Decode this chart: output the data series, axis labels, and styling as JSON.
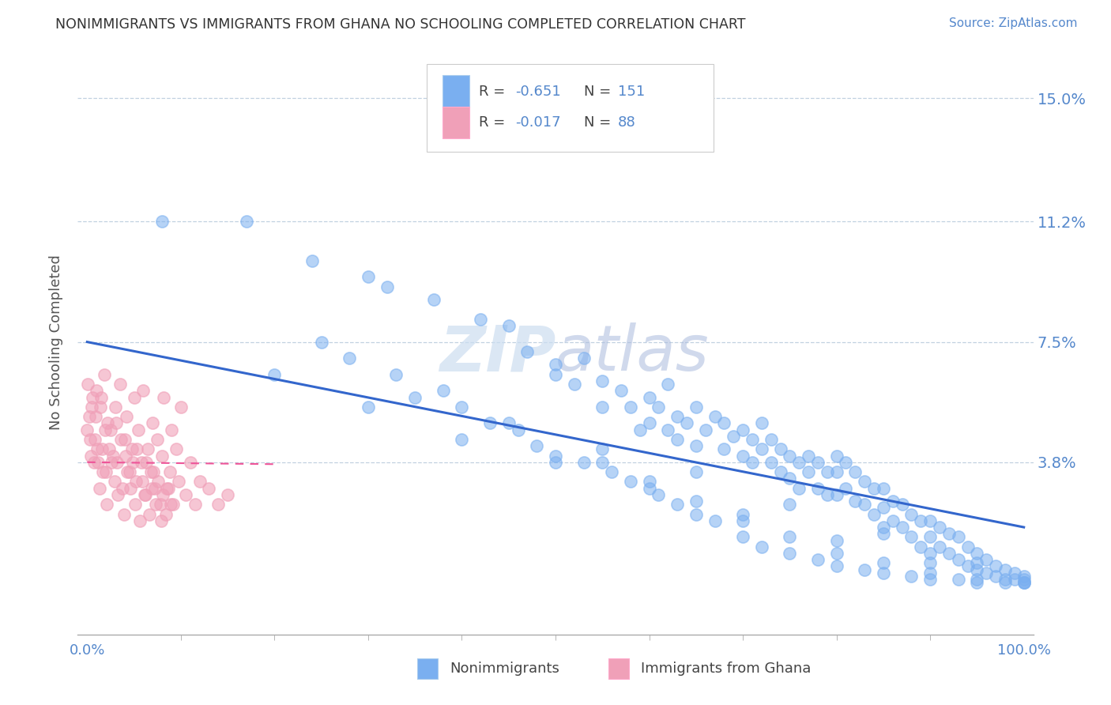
{
  "title": "NONIMMIGRANTS VS IMMIGRANTS FROM GHANA NO SCHOOLING COMPLETED CORRELATION CHART",
  "source_text": "Source: ZipAtlas.com",
  "ylabel": "No Schooling Completed",
  "y_tick_labels": [
    "15.0%",
    "11.2%",
    "7.5%",
    "3.8%"
  ],
  "y_tick_values": [
    0.15,
    0.112,
    0.075,
    0.038
  ],
  "xlim": [
    -0.01,
    1.01
  ],
  "ylim": [
    -0.015,
    0.165
  ],
  "blue_color": "#7aaff0",
  "pink_color": "#f0a0b8",
  "trend_blue": "#3366cc",
  "trend_pink": "#ee5599",
  "label_color": "#5588cc",
  "watermark_color": "#d8e8f8",
  "blue_intercept": 0.075,
  "blue_slope": -0.057,
  "pink_intercept": 0.038,
  "pink_slope": -0.003,
  "scatter_blue_x": [
    0.08,
    0.17,
    0.24,
    0.3,
    0.32,
    0.37,
    0.42,
    0.45,
    0.47,
    0.5,
    0.5,
    0.52,
    0.53,
    0.55,
    0.55,
    0.57,
    0.58,
    0.59,
    0.6,
    0.6,
    0.61,
    0.62,
    0.62,
    0.63,
    0.63,
    0.64,
    0.65,
    0.65,
    0.66,
    0.67,
    0.68,
    0.68,
    0.69,
    0.7,
    0.7,
    0.71,
    0.71,
    0.72,
    0.72,
    0.73,
    0.73,
    0.74,
    0.74,
    0.75,
    0.75,
    0.76,
    0.76,
    0.77,
    0.77,
    0.78,
    0.78,
    0.79,
    0.79,
    0.8,
    0.8,
    0.8,
    0.81,
    0.81,
    0.82,
    0.82,
    0.83,
    0.83,
    0.84,
    0.84,
    0.85,
    0.85,
    0.85,
    0.86,
    0.86,
    0.87,
    0.87,
    0.88,
    0.88,
    0.89,
    0.89,
    0.9,
    0.9,
    0.9,
    0.91,
    0.91,
    0.92,
    0.92,
    0.93,
    0.93,
    0.94,
    0.94,
    0.95,
    0.95,
    0.96,
    0.96,
    0.97,
    0.97,
    0.98,
    0.98,
    0.99,
    0.99,
    1.0,
    1.0,
    1.0,
    0.25,
    0.28,
    0.33,
    0.38,
    0.4,
    0.43,
    0.46,
    0.48,
    0.5,
    0.53,
    0.56,
    0.58,
    0.61,
    0.63,
    0.65,
    0.67,
    0.7,
    0.72,
    0.75,
    0.78,
    0.8,
    0.83,
    0.85,
    0.88,
    0.9,
    0.93,
    0.95,
    0.98,
    0.35,
    0.45,
    0.55,
    0.65,
    0.75,
    0.85,
    0.95,
    0.2,
    0.3,
    0.4,
    0.5,
    0.6,
    0.7,
    0.8,
    0.9,
    1.0,
    0.55,
    0.6,
    0.65,
    0.7,
    0.75,
    0.8,
    0.85,
    0.9,
    0.95,
    1.0
  ],
  "scatter_blue_y": [
    0.112,
    0.112,
    0.1,
    0.095,
    0.092,
    0.088,
    0.082,
    0.08,
    0.072,
    0.068,
    0.065,
    0.062,
    0.07,
    0.063,
    0.055,
    0.06,
    0.055,
    0.048,
    0.058,
    0.05,
    0.055,
    0.048,
    0.062,
    0.052,
    0.045,
    0.05,
    0.055,
    0.043,
    0.048,
    0.052,
    0.042,
    0.05,
    0.046,
    0.048,
    0.04,
    0.045,
    0.038,
    0.05,
    0.042,
    0.045,
    0.038,
    0.042,
    0.035,
    0.04,
    0.033,
    0.038,
    0.03,
    0.04,
    0.035,
    0.038,
    0.03,
    0.035,
    0.028,
    0.04,
    0.035,
    0.028,
    0.038,
    0.03,
    0.035,
    0.026,
    0.032,
    0.025,
    0.03,
    0.022,
    0.03,
    0.024,
    0.018,
    0.026,
    0.02,
    0.025,
    0.018,
    0.022,
    0.015,
    0.02,
    0.012,
    0.02,
    0.015,
    0.01,
    0.018,
    0.012,
    0.016,
    0.01,
    0.015,
    0.008,
    0.012,
    0.006,
    0.01,
    0.005,
    0.008,
    0.004,
    0.006,
    0.003,
    0.005,
    0.002,
    0.004,
    0.002,
    0.003,
    0.001,
    0.001,
    0.075,
    0.07,
    0.065,
    0.06,
    0.055,
    0.05,
    0.048,
    0.043,
    0.04,
    0.038,
    0.035,
    0.032,
    0.028,
    0.025,
    0.022,
    0.02,
    0.015,
    0.012,
    0.01,
    0.008,
    0.006,
    0.005,
    0.004,
    0.003,
    0.002,
    0.002,
    0.001,
    0.001,
    0.058,
    0.05,
    0.042,
    0.035,
    0.025,
    0.016,
    0.007,
    0.065,
    0.055,
    0.045,
    0.038,
    0.03,
    0.022,
    0.014,
    0.007,
    0.002,
    0.038,
    0.032,
    0.026,
    0.02,
    0.015,
    0.01,
    0.007,
    0.004,
    0.002,
    0.001
  ],
  "scatter_pink_x": [
    0.0,
    0.002,
    0.004,
    0.006,
    0.008,
    0.01,
    0.012,
    0.014,
    0.016,
    0.018,
    0.02,
    0.022,
    0.025,
    0.028,
    0.03,
    0.032,
    0.035,
    0.038,
    0.04,
    0.042,
    0.045,
    0.048,
    0.05,
    0.052,
    0.055,
    0.058,
    0.06,
    0.062,
    0.065,
    0.068,
    0.07,
    0.072,
    0.075,
    0.078,
    0.08,
    0.082,
    0.085,
    0.088,
    0.09,
    0.092,
    0.095,
    0.098,
    0.1,
    0.105,
    0.11,
    0.115,
    0.12,
    0.13,
    0.14,
    0.15,
    0.001,
    0.003,
    0.005,
    0.007,
    0.009,
    0.011,
    0.013,
    0.015,
    0.017,
    0.019,
    0.021,
    0.023,
    0.026,
    0.029,
    0.031,
    0.033,
    0.036,
    0.039,
    0.041,
    0.043,
    0.046,
    0.049,
    0.051,
    0.053,
    0.056,
    0.059,
    0.061,
    0.063,
    0.066,
    0.069,
    0.071,
    0.073,
    0.076,
    0.079,
    0.081,
    0.084,
    0.087,
    0.089
  ],
  "scatter_pink_y": [
    0.048,
    0.052,
    0.04,
    0.058,
    0.045,
    0.06,
    0.038,
    0.055,
    0.042,
    0.065,
    0.035,
    0.05,
    0.048,
    0.04,
    0.055,
    0.038,
    0.062,
    0.03,
    0.045,
    0.052,
    0.035,
    0.042,
    0.058,
    0.032,
    0.048,
    0.038,
    0.06,
    0.028,
    0.042,
    0.035,
    0.05,
    0.03,
    0.045,
    0.025,
    0.04,
    0.058,
    0.03,
    0.035,
    0.048,
    0.025,
    0.042,
    0.032,
    0.055,
    0.028,
    0.038,
    0.025,
    0.032,
    0.03,
    0.025,
    0.028,
    0.062,
    0.045,
    0.055,
    0.038,
    0.052,
    0.042,
    0.03,
    0.058,
    0.035,
    0.048,
    0.025,
    0.042,
    0.038,
    0.032,
    0.05,
    0.028,
    0.045,
    0.022,
    0.04,
    0.035,
    0.03,
    0.038,
    0.025,
    0.042,
    0.02,
    0.032,
    0.028,
    0.038,
    0.022,
    0.03,
    0.035,
    0.025,
    0.032,
    0.02,
    0.028,
    0.022,
    0.03,
    0.025
  ]
}
